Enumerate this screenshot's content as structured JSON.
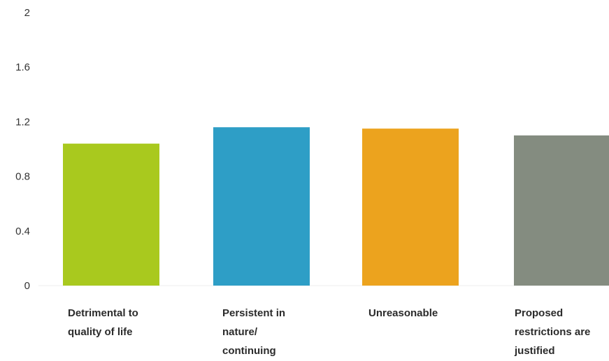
{
  "chart_data": {
    "type": "bar",
    "categories": [
      "Detrimental to\nquality of life",
      "Persistent in\nnature/\ncontinuing",
      "Unreasonable",
      "Proposed\nrestrictions are\njustified"
    ],
    "values": [
      1.04,
      1.16,
      1.15,
      1.1
    ],
    "colors": [
      "#a9c91e",
      "#2e9ec6",
      "#eca31e",
      "#848c80"
    ],
    "title": "",
    "xlabel": "",
    "ylabel": "",
    "ylim": [
      0,
      2
    ],
    "yticks": [
      {
        "value": 0,
        "label": "0"
      },
      {
        "value": 0.4,
        "label": "0.4"
      },
      {
        "value": 0.8,
        "label": "0.8"
      },
      {
        "value": 1.2,
        "label": "1.2"
      },
      {
        "value": 1.6,
        "label": "1.6"
      },
      {
        "value": 2,
        "label": "2"
      }
    ],
    "grid": false,
    "legend": "none"
  }
}
